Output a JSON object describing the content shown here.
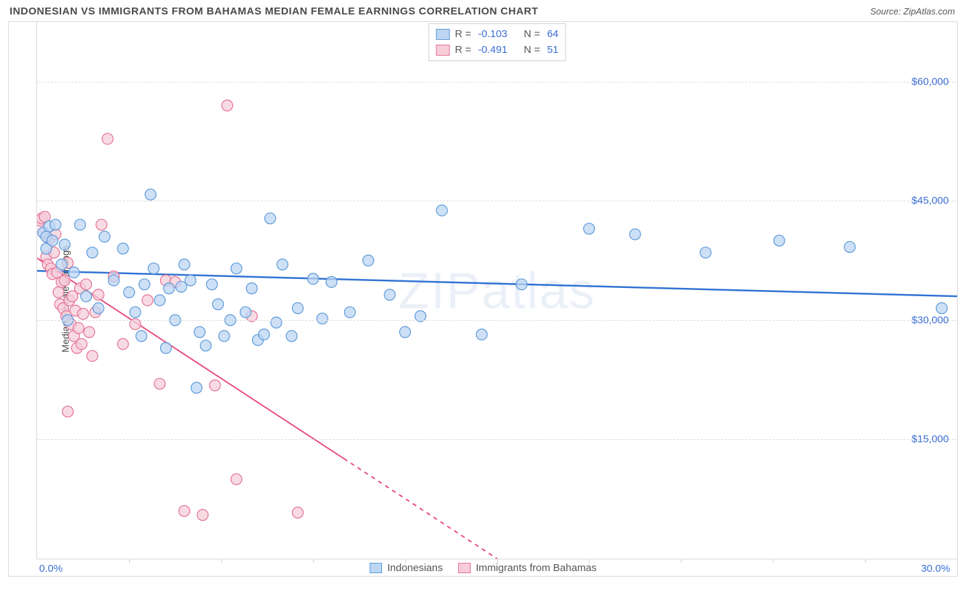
{
  "header": {
    "title": "INDONESIAN VS IMMIGRANTS FROM BAHAMAS MEDIAN FEMALE EARNINGS CORRELATION CHART",
    "source_prefix": "Source: ",
    "source_name": "ZipAtlas.com"
  },
  "chart": {
    "type": "scatter",
    "watermark": "ZIPatlas",
    "ylabel": "Median Female Earnings",
    "background_color": "#ffffff",
    "grid_color": "#dcdcdc",
    "border_color": "#d9d9d9",
    "text_color": "#4a4a4a",
    "tick_label_color": "#3b6fd6",
    "xlim": [
      0,
      30
    ],
    "ylim": [
      0,
      67500
    ],
    "x_axis": {
      "min_label": "0.0%",
      "max_label": "30.0%",
      "tick_positions": [
        0,
        3,
        6,
        9,
        12,
        15,
        18,
        21,
        24,
        27,
        30
      ]
    },
    "y_axis": {
      "ticks": [
        15000,
        30000,
        45000,
        60000
      ],
      "tick_labels": [
        "$15,000",
        "$30,000",
        "$45,000",
        "$60,000"
      ]
    },
    "series": [
      {
        "id": "indonesians",
        "label": "Indonesians",
        "marker_fill": "#bcd6f3",
        "marker_stroke": "#5a98d8",
        "line_color": "#2e72d2",
        "marker_radius": 8,
        "line_width": 2.5,
        "correlation_r": "-0.103",
        "correlation_n": "64",
        "regression": {
          "x1": 0,
          "y1": 36200,
          "x2": 30,
          "y2": 33000
        },
        "points": [
          [
            0.2,
            41000
          ],
          [
            0.3,
            40500
          ],
          [
            0.3,
            39000
          ],
          [
            0.4,
            41800
          ],
          [
            0.5,
            40000
          ],
          [
            0.6,
            42000
          ],
          [
            0.8,
            37000
          ],
          [
            0.9,
            39500
          ],
          [
            1.0,
            30000
          ],
          [
            1.2,
            36000
          ],
          [
            1.4,
            42000
          ],
          [
            1.6,
            33000
          ],
          [
            1.8,
            38500
          ],
          [
            2.0,
            31500
          ],
          [
            2.2,
            40500
          ],
          [
            2.5,
            35000
          ],
          [
            2.8,
            39000
          ],
          [
            3.0,
            33500
          ],
          [
            3.2,
            31000
          ],
          [
            3.4,
            28000
          ],
          [
            3.5,
            34500
          ],
          [
            3.7,
            45800
          ],
          [
            3.8,
            36500
          ],
          [
            4.0,
            32500
          ],
          [
            4.2,
            26500
          ],
          [
            4.3,
            34000
          ],
          [
            4.5,
            30000
          ],
          [
            4.7,
            34200
          ],
          [
            4.8,
            37000
          ],
          [
            5.0,
            35000
          ],
          [
            5.2,
            21500
          ],
          [
            5.3,
            28500
          ],
          [
            5.5,
            26800
          ],
          [
            5.7,
            34500
          ],
          [
            5.9,
            32000
          ],
          [
            6.1,
            28000
          ],
          [
            6.3,
            30000
          ],
          [
            6.5,
            36500
          ],
          [
            6.8,
            31000
          ],
          [
            7.0,
            34000
          ],
          [
            7.2,
            27500
          ],
          [
            7.4,
            28200
          ],
          [
            7.6,
            42800
          ],
          [
            7.8,
            29700
          ],
          [
            8.0,
            37000
          ],
          [
            8.3,
            28000
          ],
          [
            8.5,
            31500
          ],
          [
            9.0,
            35200
          ],
          [
            9.3,
            30200
          ],
          [
            9.6,
            34800
          ],
          [
            10.2,
            31000
          ],
          [
            10.8,
            37500
          ],
          [
            11.5,
            33200
          ],
          [
            12.0,
            28500
          ],
          [
            12.5,
            30500
          ],
          [
            13.2,
            43800
          ],
          [
            14.5,
            28200
          ],
          [
            15.8,
            34500
          ],
          [
            18.0,
            41500
          ],
          [
            19.5,
            40800
          ],
          [
            21.8,
            38500
          ],
          [
            24.2,
            40000
          ],
          [
            26.5,
            39200
          ],
          [
            29.5,
            31500
          ]
        ]
      },
      {
        "id": "bahamas",
        "label": "Immigrants from Bahamas",
        "marker_fill": "#f6cdd9",
        "marker_stroke": "#e36f94",
        "line_color": "#e94d80",
        "marker_radius": 8,
        "line_width": 2,
        "correlation_r": "-0.491",
        "correlation_n": "51",
        "regression": {
          "x1": 0,
          "y1": 37800,
          "x2": 15,
          "y2": 0
        },
        "regression_dash_after_x": 10,
        "points": [
          [
            0.1,
            42500
          ],
          [
            0.15,
            42800
          ],
          [
            0.2,
            41000
          ],
          [
            0.25,
            43000
          ],
          [
            0.3,
            38000
          ],
          [
            0.35,
            37000
          ],
          [
            0.4,
            40200
          ],
          [
            0.45,
            36500
          ],
          [
            0.5,
            35800
          ],
          [
            0.55,
            38500
          ],
          [
            0.6,
            40800
          ],
          [
            0.65,
            36000
          ],
          [
            0.7,
            33500
          ],
          [
            0.75,
            32000
          ],
          [
            0.8,
            34800
          ],
          [
            0.85,
            31500
          ],
          [
            0.9,
            35000
          ],
          [
            0.95,
            30500
          ],
          [
            1.0,
            37200
          ],
          [
            1.05,
            32500
          ],
          [
            1.1,
            29500
          ],
          [
            1.15,
            33000
          ],
          [
            1.2,
            28000
          ],
          [
            1.25,
            31200
          ],
          [
            1.3,
            26500
          ],
          [
            1.35,
            29000
          ],
          [
            1.4,
            34000
          ],
          [
            1.45,
            27000
          ],
          [
            1.5,
            30800
          ],
          [
            1.6,
            34500
          ],
          [
            1.7,
            28500
          ],
          [
            1.8,
            25500
          ],
          [
            1.9,
            31000
          ],
          [
            2.0,
            33200
          ],
          [
            2.1,
            42000
          ],
          [
            2.3,
            52800
          ],
          [
            2.5,
            35500
          ],
          [
            2.8,
            27000
          ],
          [
            3.2,
            29500
          ],
          [
            3.6,
            32500
          ],
          [
            4.0,
            22000
          ],
          [
            4.2,
            35000
          ],
          [
            4.5,
            34800
          ],
          [
            4.8,
            6000
          ],
          [
            5.4,
            5500
          ],
          [
            5.8,
            21800
          ],
          [
            6.2,
            57000
          ],
          [
            6.5,
            10000
          ],
          [
            7.0,
            30500
          ],
          [
            8.5,
            5800
          ],
          [
            1.0,
            18500
          ]
        ]
      }
    ],
    "legend_top": {
      "r_label": "R =",
      "n_label": "N ="
    },
    "bottom_legend": true
  }
}
